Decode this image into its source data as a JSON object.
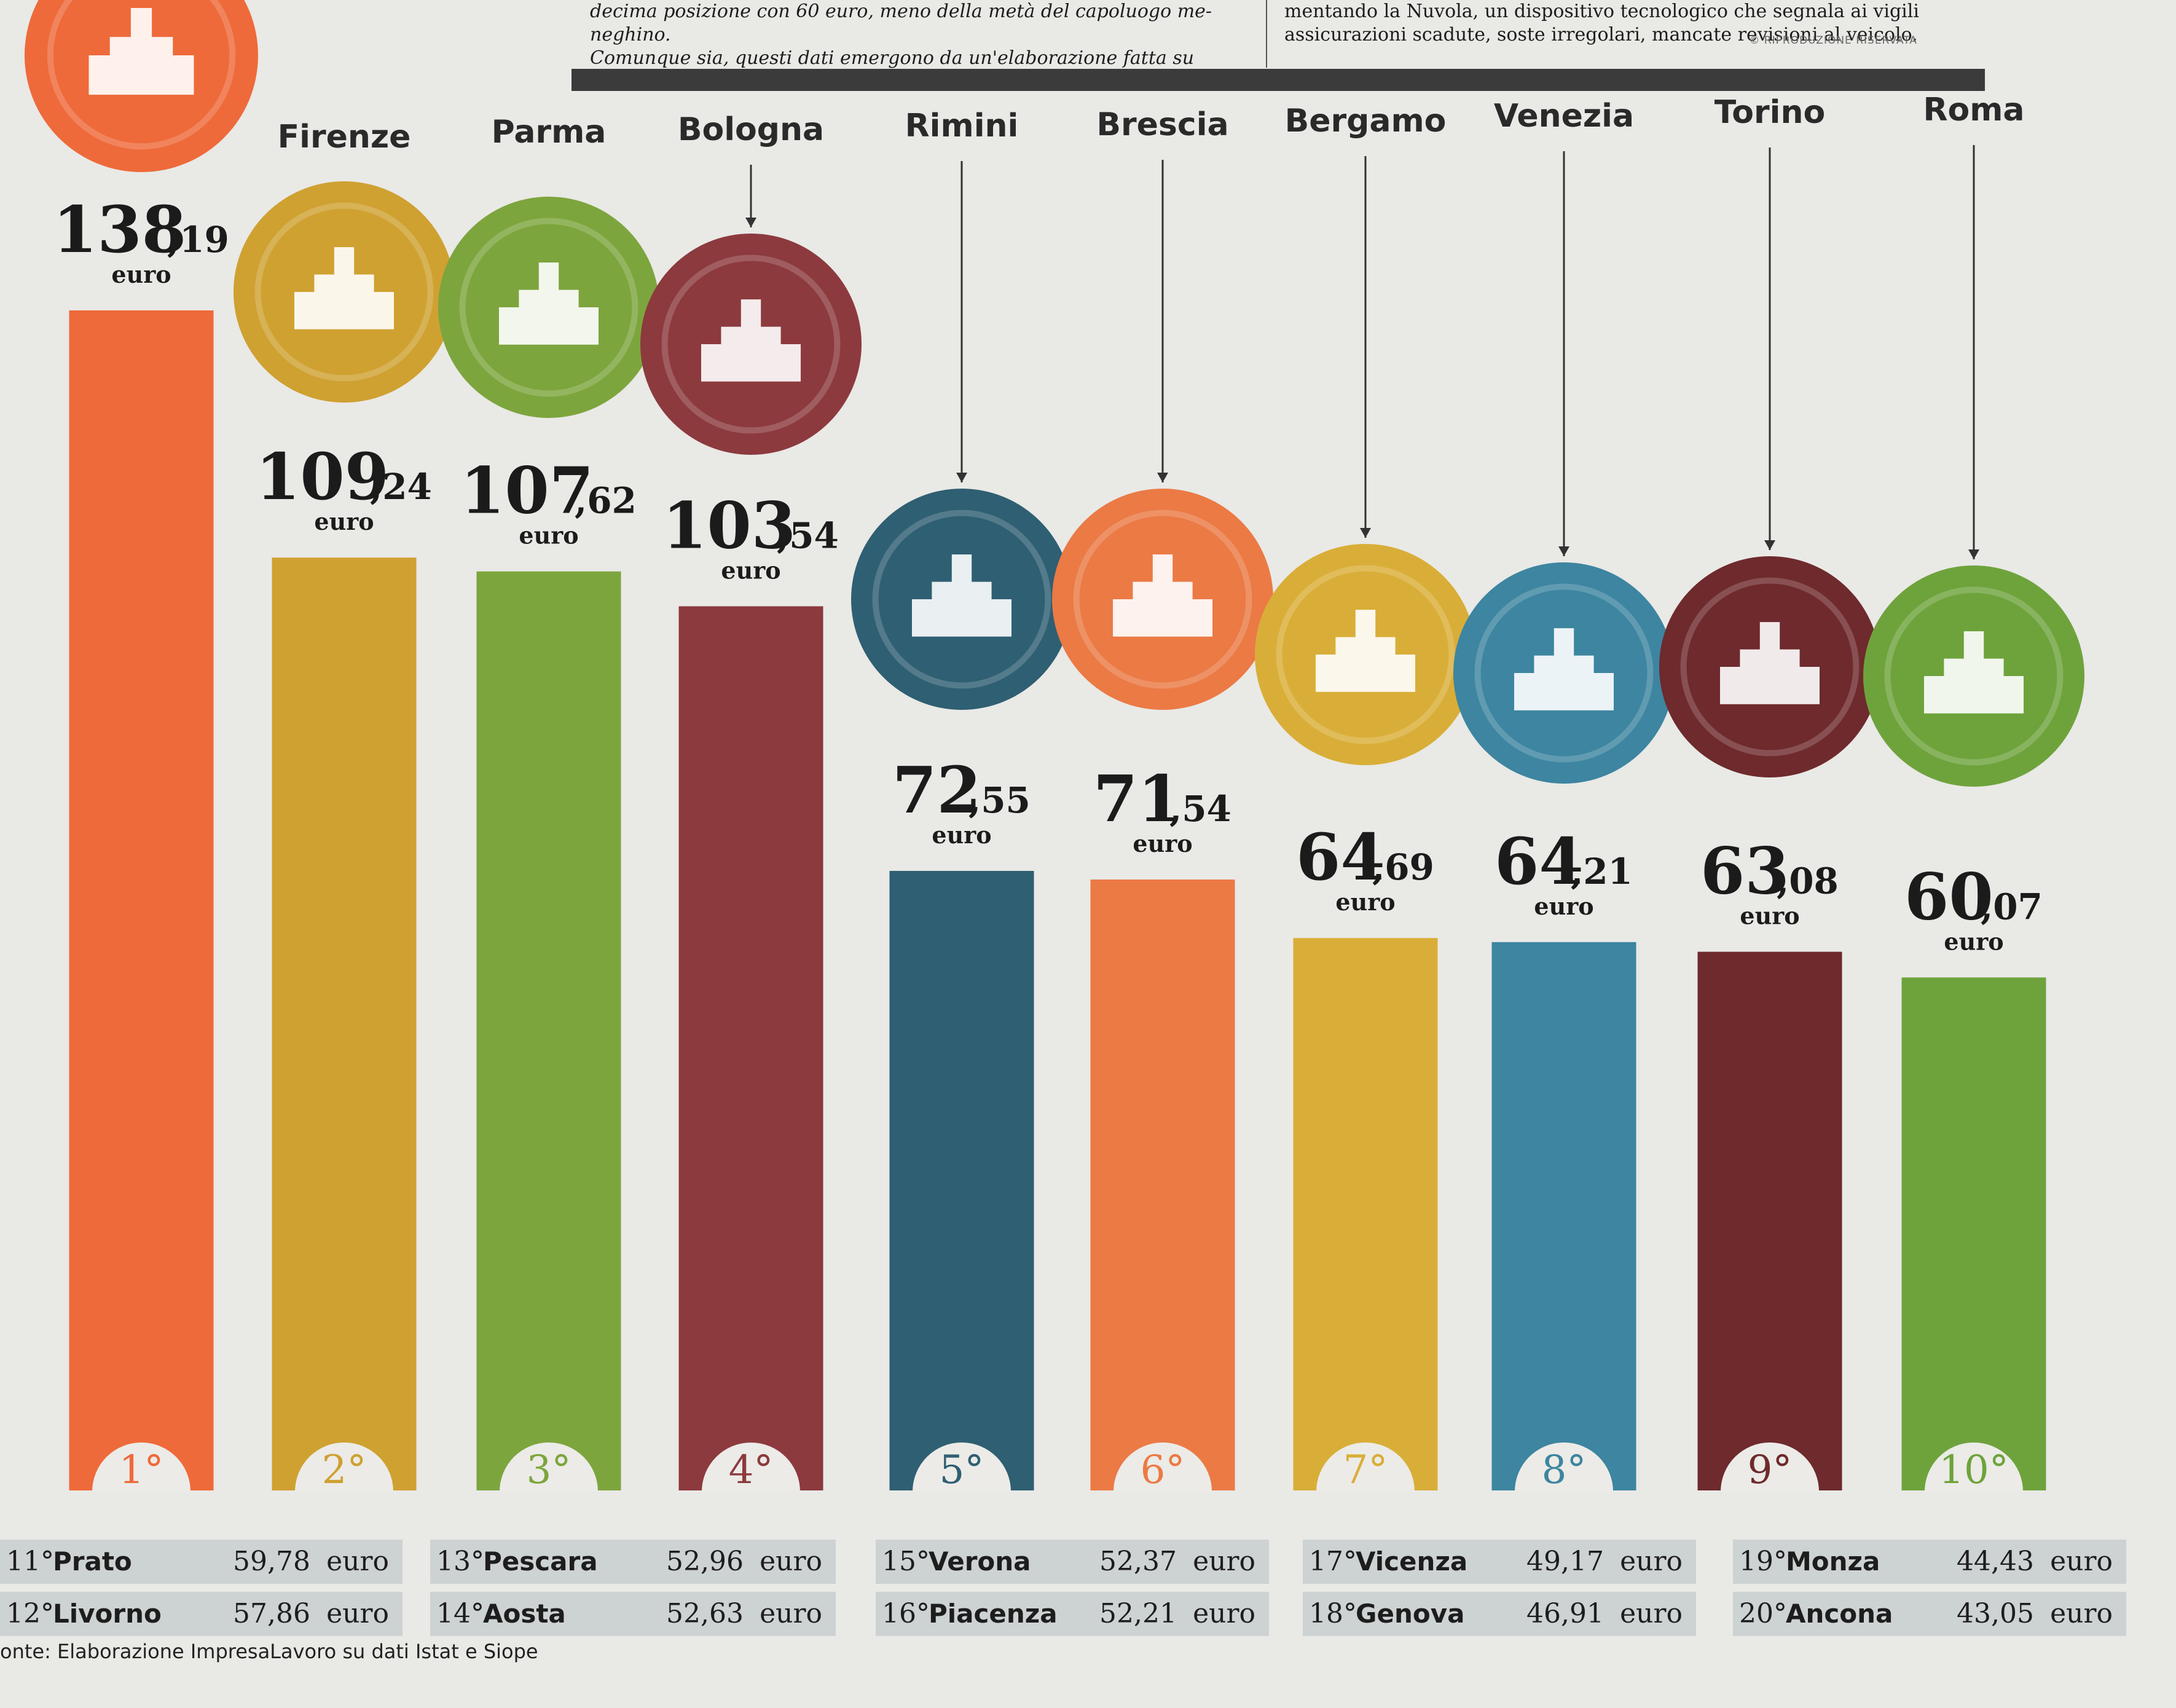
{
  "article": {
    "left_lines": [
      "decima posizione con 60 euro, meno della metà del capoluogo me-",
      "neghino.",
      "Comunque sia, questi dati emergono da un'elaborazione fatta su"
    ],
    "right_lines": [
      "mentando la Nuvola, un dispositivo tecnologico che segnala ai vigili",
      "assicurazioni scadute, soste irregolari, mancate revisioni al veicolo."
    ],
    "rights": "© RIPRODUZIONE RISERVATA"
  },
  "unit_label": "euro",
  "chart_data": {
    "type": "bar",
    "title": "",
    "xlabel": "",
    "ylabel": "",
    "ylim": [
      0,
      140
    ],
    "grid": false,
    "legend": "none",
    "categories": [
      "",
      "Firenze",
      "Parma",
      "Bologna",
      "Rimini",
      "Brescia",
      "Bergamo",
      "Venezia",
      "Torino",
      "Roma"
    ],
    "ranks": [
      "1°",
      "2°",
      "3°",
      "4°",
      "5°",
      "6°",
      "7°",
      "8°",
      "9°",
      "10°"
    ],
    "values": [
      138.19,
      109.24,
      107.62,
      103.54,
      72.55,
      71.54,
      64.69,
      64.21,
      63.08,
      60.07
    ],
    "value_int": [
      "138",
      "109",
      "107",
      "103",
      "72",
      "71",
      "64",
      "64",
      "63",
      "60"
    ],
    "value_dec": [
      ",19",
      ",24",
      ",62",
      ",54",
      ",55",
      ",54",
      ",69",
      ",21",
      ",08",
      ",07"
    ],
    "colors": [
      "#ee6a3a",
      "#cfa131",
      "#7da53d",
      "#8c3a3e",
      "#2f5f72",
      "#eb7a45",
      "#d9ae38",
      "#3d85a0",
      "#6e2a2c",
      "#6ea33c"
    ],
    "rank_colors": [
      "#ee6a3a",
      "#cfa131",
      "#7da53d",
      "#8c3a3e",
      "#2f5f72",
      "#eb7a45",
      "#d9ae38",
      "#3d85a0",
      "#6e2a2c",
      "#6ea33c"
    ],
    "icons": [
      "duomo-icon",
      "palazzo-vecchio-icon",
      "parma-cathedral-icon",
      "two-towers-icon",
      "arch-of-augustus-icon",
      "brescia-loggia-icon",
      "bergamo-chapel-icon",
      "san-marco-icon",
      "mole-antonelliana-icon",
      "colosseum-icon"
    ]
  },
  "rest_table": [
    [
      {
        "rank": "11°",
        "city": "Prato",
        "value": "59,78",
        "unit": "euro"
      },
      {
        "rank": "12°",
        "city": "Livorno",
        "value": "57,86",
        "unit": "euro"
      }
    ],
    [
      {
        "rank": "13°",
        "city": "Pescara",
        "value": "52,96",
        "unit": "euro"
      },
      {
        "rank": "14°",
        "city": "Aosta",
        "value": "52,63",
        "unit": "euro"
      }
    ],
    [
      {
        "rank": "15°",
        "city": "Verona",
        "value": "52,37",
        "unit": "euro"
      },
      {
        "rank": "16°",
        "city": "Piacenza",
        "value": "52,21",
        "unit": "euro"
      }
    ],
    [
      {
        "rank": "17°",
        "city": "Vicenza",
        "value": "49,17",
        "unit": "euro"
      },
      {
        "rank": "18°",
        "city": "Genova",
        "value": "46,91",
        "unit": "euro"
      }
    ],
    [
      {
        "rank": "19°",
        "city": "Monza",
        "value": "44,43",
        "unit": "euro"
      },
      {
        "rank": "20°",
        "city": "Ancona",
        "value": "43,05",
        "unit": "euro"
      }
    ]
  ],
  "source": "onte: Elaborazione ImpresaLavoro su dati Istat e Siope"
}
